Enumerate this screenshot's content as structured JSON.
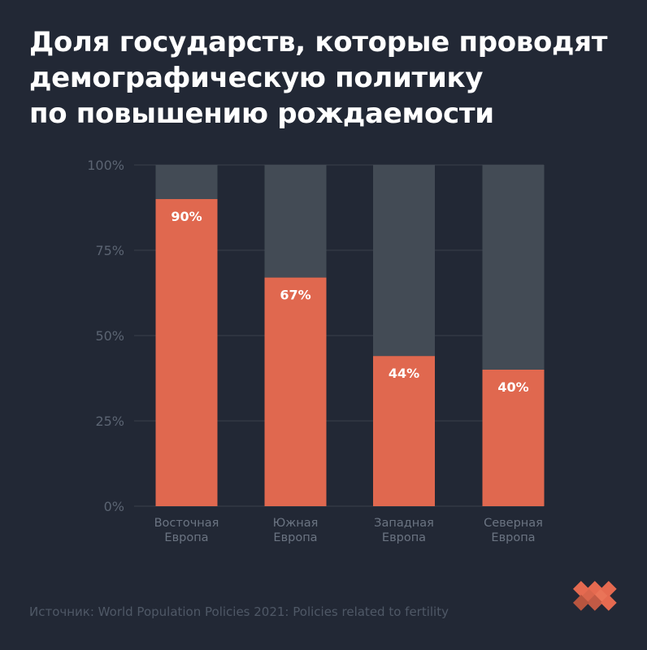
{
  "title": "Доля государств, которые проводят\nдемографическую политику\nпо повышению рождаемости",
  "source": "Источник: World Population Policies 2021: Policies related to fertility",
  "colors": {
    "background": "#222835",
    "bar": "#e0684f",
    "bar_remainder": "#434b55",
    "axis_text": "#5b6472",
    "category_text": "#6b7482",
    "grid": "#3a414c",
    "logo": "#e0684f"
  },
  "icons": {
    "logo": "pixel-heart-logo"
  },
  "chart_data": {
    "type": "bar",
    "stacked_to_100": true,
    "title": "",
    "xlabel": "",
    "ylabel": "",
    "ylim": [
      0,
      100
    ],
    "yticks": [
      "0%",
      "25%",
      "50%",
      "75%",
      "100%"
    ],
    "ytick_values": [
      0,
      25,
      50,
      75,
      100
    ],
    "grid": true,
    "categories": [
      "Восточная\nЕвропа",
      "Южная\nЕвропа",
      "Западная\nЕвропа",
      "Северная\nЕвропа"
    ],
    "values": [
      90,
      67,
      44,
      40
    ],
    "data_labels": [
      "90%",
      "67%",
      "44%",
      "40%"
    ]
  }
}
